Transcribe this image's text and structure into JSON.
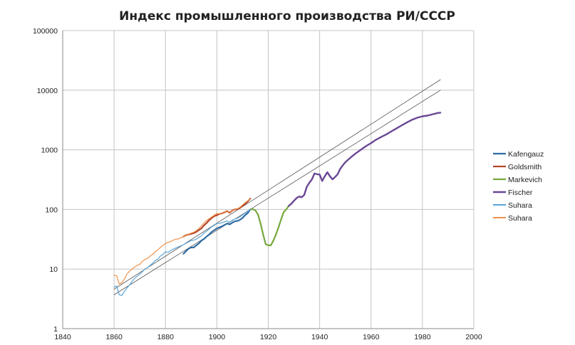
{
  "chart_data": {
    "type": "line",
    "title": "Индекс промышленного производства РИ/СССР",
    "xlabel": "",
    "ylabel": "",
    "xlim": [
      1840,
      2000
    ],
    "ylim": [
      1,
      100000
    ],
    "yscale": "log",
    "x_ticks": [
      1840,
      1860,
      1880,
      1900,
      1920,
      1940,
      1960,
      1980,
      2000
    ],
    "y_ticks": [
      1,
      10,
      100,
      1000,
      10000,
      100000
    ],
    "y_tick_labels": [
      "1",
      "10",
      "100",
      "1000",
      "10000",
      "100000"
    ],
    "grid": true,
    "legend_position": "right",
    "series": [
      {
        "name": "Kafengauz",
        "color": "#2e6ca4",
        "width": 2.2,
        "x": [
          1887,
          1888,
          1889,
          1890,
          1891,
          1892,
          1893,
          1894,
          1895,
          1896,
          1897,
          1898,
          1899,
          1900,
          1901,
          1902,
          1903,
          1904,
          1905,
          1906,
          1907,
          1908,
          1909,
          1910,
          1911,
          1912,
          1913
        ],
        "y": [
          18,
          20,
          22,
          23,
          23,
          25,
          27,
          30,
          32,
          35,
          38,
          42,
          45,
          48,
          50,
          52,
          55,
          58,
          56,
          60,
          63,
          64,
          67,
          72,
          80,
          87,
          100
        ]
      },
      {
        "name": "Goldsmith",
        "color": "#b5452a",
        "width": 2.2,
        "x": [
          1887,
          1888,
          1889,
          1890,
          1891,
          1892,
          1893,
          1894,
          1895,
          1896,
          1897,
          1898,
          1899,
          1900,
          1901,
          1902,
          1903,
          1904,
          1905,
          1906,
          1907,
          1908,
          1909,
          1910,
          1911,
          1912,
          1913
        ],
        "y": [
          35,
          37,
          38,
          39,
          40,
          42,
          45,
          48,
          54,
          59,
          66,
          72,
          77,
          80,
          84,
          86,
          90,
          94,
          88,
          96,
          100,
          101,
          106,
          115,
          124,
          136,
          152
        ]
      },
      {
        "name": "Markevich",
        "color": "#76a83c",
        "width": 2.2,
        "x": [
          1913,
          1914,
          1915,
          1916,
          1917,
          1918,
          1919,
          1920,
          1921,
          1922,
          1923,
          1924,
          1925,
          1926,
          1927,
          1928
        ],
        "y": [
          100,
          101,
          96,
          82,
          58,
          38,
          26,
          25,
          25,
          30,
          38,
          50,
          68,
          90,
          100,
          115
        ]
      },
      {
        "name": "Fischer",
        "color": "#6a4794",
        "width": 2.4,
        "x": [
          1928,
          1929,
          1930,
          1931,
          1932,
          1933,
          1934,
          1935,
          1936,
          1937,
          1938,
          1939,
          1940,
          1941,
          1942,
          1943,
          1944,
          1945,
          1946,
          1947,
          1948,
          1949,
          1950,
          1952,
          1954,
          1956,
          1958,
          1960,
          1962,
          1964,
          1966,
          1968,
          1970,
          1972,
          1974,
          1976,
          1978,
          1980,
          1982,
          1984,
          1986,
          1987
        ],
        "y": [
          115,
          125,
          140,
          155,
          165,
          160,
          175,
          240,
          280,
          320,
          400,
          390,
          385,
          300,
          360,
          420,
          360,
          320,
          350,
          390,
          480,
          550,
          620,
          740,
          870,
          1000,
          1150,
          1300,
          1480,
          1650,
          1820,
          2050,
          2300,
          2580,
          2880,
          3200,
          3450,
          3650,
          3750,
          3950,
          4150,
          4200
        ]
      },
      {
        "name": "Suhara",
        "color": "#5aa5d8",
        "width": 1.2,
        "x": [
          1860,
          1861,
          1862,
          1863,
          1864,
          1865,
          1866,
          1867,
          1868,
          1869,
          1870,
          1871,
          1872,
          1873,
          1874,
          1875,
          1876,
          1877,
          1878,
          1879,
          1880,
          1881,
          1882,
          1883,
          1884,
          1885,
          1886,
          1887,
          1888,
          1889,
          1890,
          1891,
          1892,
          1893,
          1894,
          1895,
          1896,
          1897,
          1898,
          1899,
          1900,
          1901,
          1902,
          1903,
          1904,
          1905,
          1906,
          1907,
          1908,
          1909,
          1910,
          1911,
          1912,
          1913
        ],
        "y": [
          5.0,
          5.2,
          3.7,
          3.6,
          4.2,
          4.8,
          5.4,
          6.2,
          7.0,
          7.6,
          8.2,
          9.0,
          10.0,
          10.5,
          11.5,
          12.5,
          14.0,
          14.5,
          16.5,
          17.5,
          19.5,
          19.0,
          20.5,
          21.5,
          22.5,
          23.5,
          24.5,
          25.5,
          27.0,
          28.5,
          30.0,
          30.5,
          31.5,
          34.0,
          36.0,
          40.0,
          43.0,
          47.0,
          51.0,
          54.0,
          58.0,
          58.0,
          60.0,
          62.0,
          64.0,
          61.0,
          66.0,
          69.0,
          71.0,
          75.0,
          81.0,
          87.0,
          92.0,
          100.0
        ]
      },
      {
        "name": "Suhara",
        "color": "#f0914a",
        "width": 1.2,
        "x": [
          1860,
          1861,
          1862,
          1863,
          1864,
          1865,
          1866,
          1867,
          1868,
          1869,
          1870,
          1871,
          1872,
          1873,
          1874,
          1875,
          1876,
          1877,
          1878,
          1879,
          1880,
          1881,
          1882,
          1883,
          1884,
          1885,
          1886,
          1887,
          1888,
          1889,
          1890,
          1891,
          1892,
          1893,
          1894,
          1895,
          1896,
          1897,
          1898,
          1899,
          1900,
          1901,
          1902,
          1903,
          1904,
          1905,
          1906,
          1907,
          1908,
          1909,
          1910,
          1911,
          1912,
          1913
        ],
        "y": [
          7.8,
          7.7,
          5.6,
          5.9,
          6.8,
          8.2,
          9.2,
          10.0,
          10.8,
          11.5,
          12.0,
          13.5,
          14.5,
          15.0,
          16.5,
          17.5,
          19.5,
          21.0,
          23.0,
          25.0,
          27.0,
          28.0,
          29.0,
          30.5,
          31.5,
          32.0,
          33.5,
          35.0,
          37.0,
          38.5,
          40.0,
          41.5,
          44.0,
          48.0,
          53.0,
          59.0,
          65.0,
          70.0,
          75.0,
          80.0,
          86.0,
          84.0,
          87.0,
          91.0,
          95.0,
          89.0,
          96.0,
          100.0,
          103.0,
          109.0,
          119.0,
          130.0,
          140.0,
          150.0
        ]
      },
      {
        "name": "",
        "color": "#505050",
        "width": 0.8,
        "x": [
          1860,
          1987
        ],
        "y": [
          4.6,
          15000
        ]
      },
      {
        "name": "",
        "color": "#505050",
        "width": 0.8,
        "x": [
          1860,
          1987
        ],
        "y": [
          3.7,
          10000
        ]
      }
    ],
    "legend": [
      "Kafengauz",
      "Goldsmith",
      "Markevich",
      "Fischer",
      "Suhara",
      "Suhara"
    ]
  }
}
